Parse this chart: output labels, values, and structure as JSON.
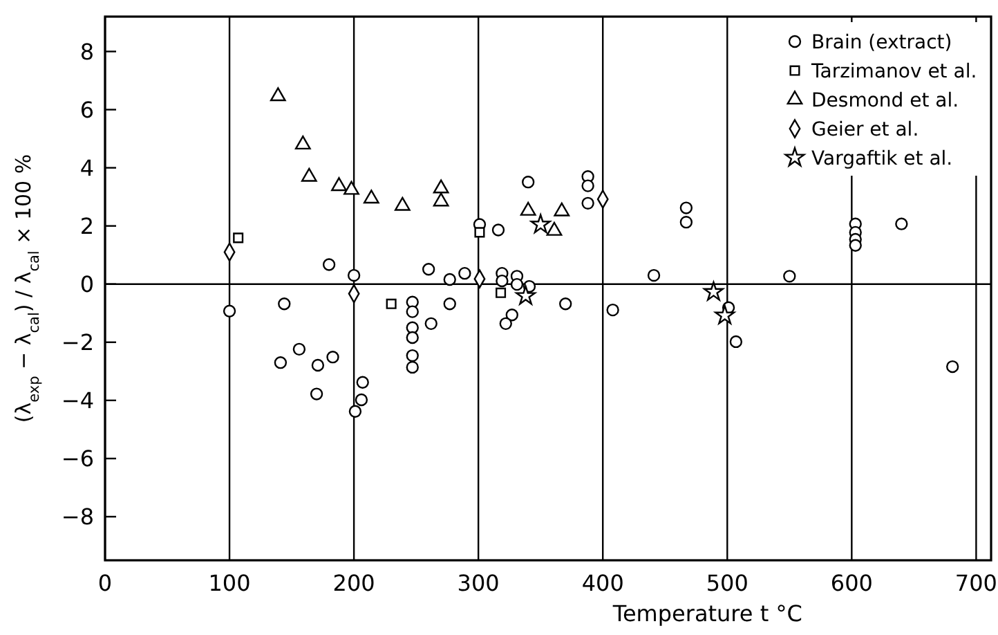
{
  "chart_data": {
    "type": "scatter",
    "xlabel": "Temperature  t °C",
    "ylabel": "(λ$_{exp}$ − λ$_{cal}$) / λ$_{cal}$ × 100 %",
    "xlim": [
      0,
      712
    ],
    "ylim": [
      -9.5,
      9.2
    ],
    "xticks": [
      0,
      100,
      200,
      300,
      400,
      500,
      600,
      700
    ],
    "yticks": [
      -8,
      -6,
      -4,
      -2,
      0,
      2,
      4,
      6,
      8
    ],
    "grid": "x",
    "legend": "top right",
    "ref_lines": [
      {
        "axis": "y",
        "value": 0,
        "color": "#000000"
      }
    ],
    "series": [
      {
        "name": "Brain (extract)",
        "color": "#000000",
        "marker": "circle",
        "x": [
          100,
          144,
          141,
          156,
          171,
          183,
          170,
          180,
          200,
          207,
          206,
          201,
          247,
          247,
          247,
          247,
          247,
          247,
          262,
          260,
          277,
          277,
          289,
          301,
          316,
          340,
          319,
          319,
          331,
          331,
          341,
          327,
          322,
          370,
          388,
          388,
          388,
          408,
          441,
          467,
          467,
          501,
          507,
          550,
          603,
          603,
          603,
          603,
          640,
          681
        ],
        "values": [
          -0.93,
          -0.68,
          -2.7,
          -2.24,
          -2.79,
          -2.51,
          -3.78,
          0.67,
          0.3,
          -3.38,
          -3.98,
          -4.38,
          -0.62,
          -0.95,
          -1.5,
          -1.84,
          -2.46,
          -2.86,
          -1.36,
          0.51,
          0.16,
          -0.68,
          0.37,
          2.05,
          1.86,
          3.51,
          0.37,
          0.11,
          0.27,
          -0.01,
          -0.08,
          -1.06,
          -1.36,
          -0.68,
          3.7,
          3.38,
          2.78,
          -0.89,
          0.3,
          2.62,
          2.13,
          -0.81,
          -1.98,
          0.27,
          2.07,
          1.78,
          1.54,
          1.33,
          2.07,
          -2.84
        ]
      },
      {
        "name": "Tarzimanov et al.",
        "color": "#000000",
        "marker": "square",
        "x": [
          107,
          230,
          301,
          318
        ],
        "values": [
          1.59,
          -0.68,
          1.78,
          -0.3
        ]
      },
      {
        "name": "Desmond et al.",
        "color": "#000000",
        "marker": "triangle",
        "x": [
          139,
          159,
          164,
          188,
          198,
          214,
          239,
          270,
          270,
          340,
          367,
          361
        ],
        "values": [
          6.46,
          4.8,
          3.69,
          3.37,
          3.24,
          2.94,
          2.69,
          3.29,
          2.84,
          2.52,
          2.5,
          1.83
        ]
      },
      {
        "name": "Geier et al.",
        "color": "#000000",
        "marker": "diamond",
        "x": [
          100,
          200,
          301,
          400
        ],
        "values": [
          1.1,
          -0.33,
          0.18,
          2.92
        ]
      },
      {
        "name": "Vargaftik et al.",
        "color": "#000000",
        "marker": "star",
        "x": [
          350,
          338,
          489,
          498
        ],
        "values": [
          2.05,
          -0.41,
          -0.27,
          -1.08
        ]
      }
    ]
  }
}
